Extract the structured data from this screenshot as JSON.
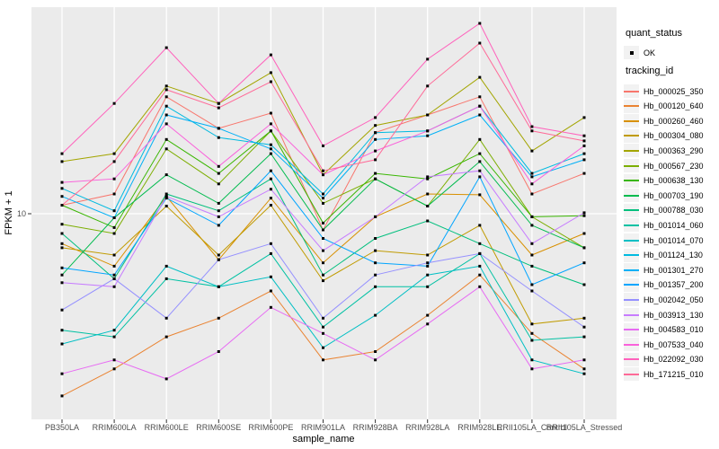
{
  "colors": {
    "panel_bg": "#EBEBEB",
    "grid": "#FFFFFF",
    "tick_mark": "#333333",
    "tick_label": "#4D4D4D",
    "axis_title": "#000000",
    "point": "#000000",
    "legend_key_bg": "#F2F2F2"
  },
  "chart_data": {
    "type": "line",
    "title": "",
    "xlabel": "sample_name",
    "ylabel": "FPKM + 1",
    "y_scale": "log10",
    "y_ticks": [
      10
    ],
    "ylim": [
      1.5,
      80
    ],
    "grid": "major-only",
    "legend_position": "right",
    "x_categories": [
      "PB350LA",
      "RRIM600LA",
      "RRIM600LE",
      "RRIM600SE",
      "RRIM600PE",
      "RRIM901LA",
      "RRIM928BA",
      "RRIM928LA",
      "RRIM928LE",
      "RRII105LA_Control",
      "RRII105LA_Stressed"
    ],
    "legend": {
      "quant_status": {
        "title": "quant_status",
        "items": [
          "OK"
        ]
      },
      "tracking_id": {
        "title": "tracking_id"
      }
    },
    "series": [
      {
        "name": "Hb_000025_350",
        "color": "#F8766D",
        "values": [
          10.9,
          12.2,
          32.4,
          23.6,
          27.5,
          8.5,
          22.6,
          27.0,
          32.4,
          12.2,
          15.0
        ]
      },
      {
        "name": "Hb_000120_640",
        "color": "#EA8331",
        "values": [
          1.6,
          2.1,
          2.9,
          3.5,
          4.6,
          2.3,
          2.5,
          3.6,
          5.4,
          3.0,
          2.1
        ]
      },
      {
        "name": "Hb_000260_460",
        "color": "#D89000",
        "values": [
          7.4,
          5.9,
          11.9,
          6.3,
          11.7,
          6.1,
          9.7,
          12.2,
          12.1,
          6.6,
          8.2
        ]
      },
      {
        "name": "Hb_000304_080",
        "color": "#C09B00",
        "values": [
          7.1,
          6.6,
          10.8,
          6.6,
          10.9,
          5.1,
          6.9,
          6.6,
          8.9,
          3.3,
          3.5
        ]
      },
      {
        "name": "Hb_000363_290",
        "color": "#A3A500",
        "values": [
          16.9,
          18.3,
          36.1,
          30.3,
          41.3,
          14.8,
          24.3,
          27.0,
          39.4,
          18.8,
          26.3
        ]
      },
      {
        "name": "Hb_000567_230",
        "color": "#7CAE00",
        "values": [
          9.0,
          8.2,
          19.2,
          13.5,
          23.0,
          11.1,
          14.2,
          10.8,
          21.1,
          9.7,
          7.1
        ]
      },
      {
        "name": "Hb_000638_130",
        "color": "#39B600",
        "values": [
          10.9,
          8.7,
          21.1,
          15.0,
          23.0,
          9.1,
          15.0,
          14.2,
          18.3,
          9.7,
          9.8
        ]
      },
      {
        "name": "Hb_000703_190",
        "color": "#00BB4E",
        "values": [
          5.4,
          9.6,
          14.8,
          11.1,
          18.3,
          8.5,
          14.2,
          10.8,
          16.9,
          8.9,
          7.1
        ]
      },
      {
        "name": "Hb_000788_030",
        "color": "#00BF7D",
        "values": [
          8.2,
          5.2,
          12.2,
          10.3,
          14.2,
          5.4,
          7.8,
          9.3,
          7.4,
          5.9,
          4.9
        ]
      },
      {
        "name": "Hb_001014_060",
        "color": "#00C1A3",
        "values": [
          3.1,
          2.9,
          5.2,
          4.8,
          6.7,
          3.2,
          4.8,
          4.8,
          6.7,
          2.8,
          2.9
        ]
      },
      {
        "name": "Hb_001014_070",
        "color": "#00BFC4",
        "values": [
          2.7,
          3.1,
          5.9,
          4.8,
          5.3,
          2.6,
          3.6,
          5.4,
          5.9,
          2.3,
          2.0
        ]
      },
      {
        "name": "Hb_001124_130",
        "color": "#00BAE0",
        "values": [
          12.9,
          10.3,
          29.5,
          21.5,
          20.0,
          12.2,
          22.6,
          23.0,
          29.5,
          15.0,
          18.3
        ]
      },
      {
        "name": "Hb_001301_270",
        "color": "#00B0F6",
        "values": [
          11.9,
          9.6,
          27.0,
          23.6,
          19.2,
          11.7,
          21.1,
          21.9,
          27.0,
          14.5,
          17.2
        ]
      },
      {
        "name": "Hb_001357_200",
        "color": "#00A5FF",
        "values": [
          5.8,
          5.4,
          11.7,
          8.9,
          15.4,
          7.8,
          6.1,
          5.9,
          14.5,
          4.9,
          6.1
        ]
      },
      {
        "name": "Hb_002042_050",
        "color": "#9590FF",
        "values": [
          3.8,
          5.2,
          3.5,
          6.3,
          7.4,
          3.5,
          5.4,
          6.1,
          6.7,
          4.6,
          3.2
        ]
      },
      {
        "name": "Hb_003913_130",
        "color": "#C77CFF",
        "values": [
          5.0,
          4.8,
          11.9,
          9.7,
          12.8,
          6.9,
          9.7,
          14.5,
          15.4,
          7.4,
          10.1
        ]
      },
      {
        "name": "Hb_004583_010",
        "color": "#E76BF3",
        "values": [
          2.0,
          2.3,
          1.9,
          2.5,
          3.9,
          3.0,
          2.3,
          3.3,
          4.8,
          2.1,
          2.3
        ]
      },
      {
        "name": "Hb_007533_040",
        "color": "#FA62DB",
        "values": [
          13.7,
          14.2,
          24.7,
          16.1,
          24.7,
          14.8,
          18.8,
          23.0,
          29.5,
          13.5,
          19.8
        ]
      },
      {
        "name": "Hb_022092_030",
        "color": "#FF62BC",
        "values": [
          18.3,
          30.3,
          53.1,
          30.3,
          49.4,
          19.8,
          26.3,
          47.3,
          67.8,
          24.0,
          21.9
        ]
      },
      {
        "name": "Hb_171215_010",
        "color": "#FF6A98",
        "values": [
          10.9,
          16.9,
          34.8,
          29.0,
          37.7,
          15.4,
          17.2,
          36.1,
          55.6,
          23.0,
          20.8
        ]
      }
    ]
  }
}
